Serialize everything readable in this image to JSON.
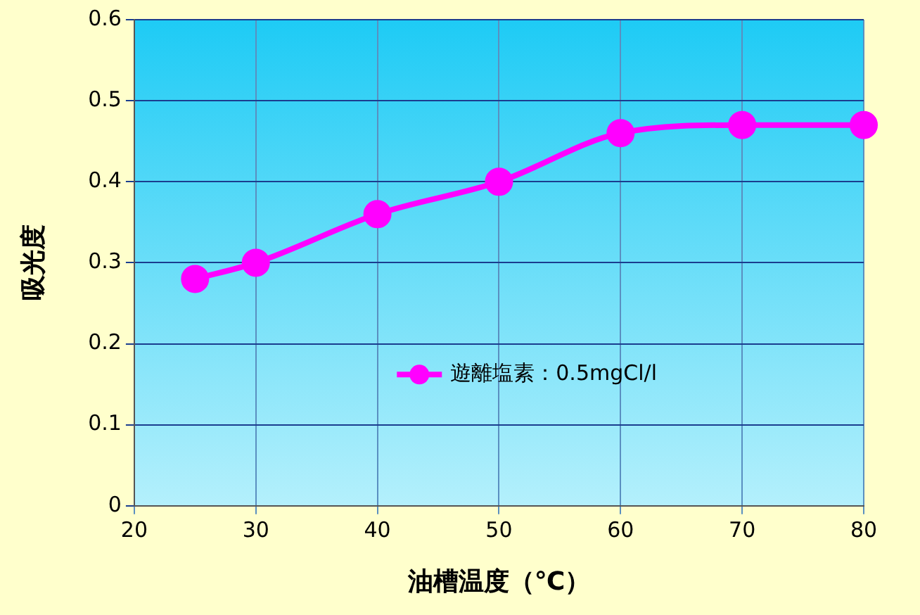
{
  "chart_data": {
    "type": "line",
    "xlabel": "油槽温度（℃）",
    "ylabel": "吸光度",
    "x": [
      25,
      30,
      40,
      50,
      60,
      70,
      80
    ],
    "series": [
      {
        "name": "遊離塩素：0.5mgCl/l",
        "color": "#ff00ff",
        "values": [
          0.28,
          0.3,
          0.36,
          0.4,
          0.46,
          0.47,
          0.47
        ]
      }
    ],
    "xlim": [
      20,
      80
    ],
    "xticks": [
      20,
      30,
      40,
      50,
      60,
      70,
      80
    ],
    "ylim": [
      0,
      0.6
    ],
    "yticks": [
      0,
      0.1,
      0.2,
      0.3,
      0.4,
      0.5,
      0.6
    ],
    "grid": true,
    "legend": "right",
    "marker": "circle",
    "line_style": "solid"
  }
}
